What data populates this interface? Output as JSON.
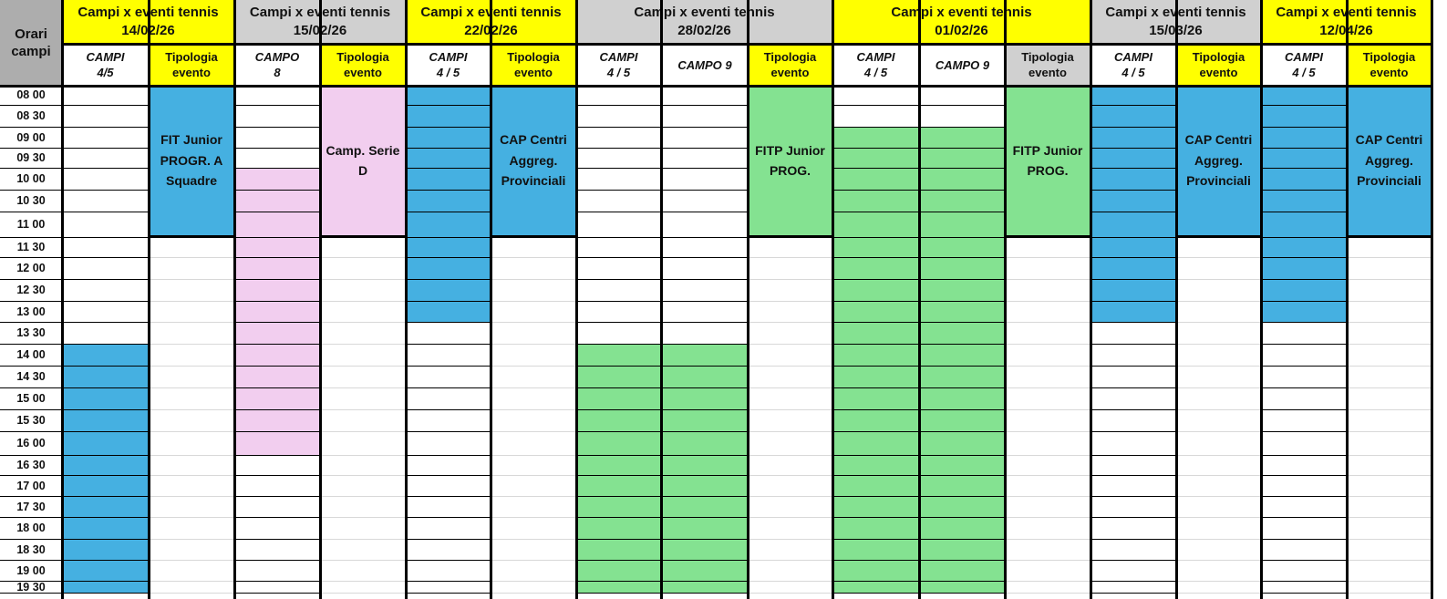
{
  "colors": {
    "yellow": "#FFFF00",
    "gray": "#D0D0D0",
    "orari_gray": "#ADADAD",
    "blue": "#45B0E1",
    "pink": "#F2CEEF",
    "green": "#84E291",
    "white": "#FFFFFF"
  },
  "orari_header": "Orari campi",
  "times": [
    "08 00",
    "08 30",
    "09 00",
    "09 30",
    "10 00",
    "10 30",
    "11 00",
    "11 30",
    "12 00",
    "12 30",
    "13 00",
    "13 30",
    "14 00",
    "14 30",
    "15 00",
    "15 30",
    "16 00",
    "16 30",
    "17 00",
    "17 30",
    "18 00",
    "18 30",
    "19 00",
    "19 30"
  ],
  "groups": [
    {
      "title": "Campi x eventi tennis",
      "date": "14/02/26",
      "header_color": "yellow",
      "courts": [
        {
          "l1": "CAMPI",
          "l2": "4/5",
          "fill": "blue",
          "from": "14 00",
          "to": "19 30"
        }
      ],
      "tipologia": {
        "l1": "Tipologia",
        "l2": "evento",
        "header_color": "yellow",
        "event": "FIT Junior PROGR. A Squadre",
        "fill": "blue"
      }
    },
    {
      "title": "Campi x eventi tennis",
      "date": "15/02/26",
      "header_color": "gray",
      "courts": [
        {
          "l1": "CAMPO",
          "l2": "8",
          "fill": "pink",
          "from": "10 00",
          "to": "16 00"
        }
      ],
      "tipologia": {
        "l1": "Tipologia",
        "l2": "evento",
        "header_color": "yellow",
        "event": "Camp. Serie D",
        "fill": "pink"
      }
    },
    {
      "title": "Campi x eventi tennis",
      "date": "22/02/26",
      "header_color": "yellow",
      "courts": [
        {
          "l1": "CAMPI",
          "l2": "4 / 5",
          "fill": "blue",
          "from": "08 00",
          "to": "13 00"
        }
      ],
      "tipologia": {
        "l1": "Tipologia",
        "l2": "evento",
        "header_color": "yellow",
        "event": "CAP Centri Aggreg. Provinciali",
        "fill": "blue"
      }
    },
    {
      "title": "Campi x eventi tennis",
      "date": "28/02/26",
      "header_color": "gray",
      "courts": [
        {
          "l1": "CAMPI",
          "l2": "4 / 5",
          "fill": "green",
          "from": "14 00",
          "to": "19 30"
        },
        {
          "l1": "CAMPO 9",
          "l2": "",
          "fill": "green",
          "from": "14 00",
          "to": "19 30"
        }
      ],
      "tipologia": {
        "l1": "Tipologia",
        "l2": "evento",
        "header_color": "yellow",
        "event": "FITP Junior PROG.",
        "fill": "green"
      }
    },
    {
      "title": "Campi x eventi tennis",
      "date": "01/02/26",
      "header_color": "yellow",
      "courts": [
        {
          "l1": "CAMPI",
          "l2": "4 / 5",
          "fill": "green",
          "from": "09 00",
          "to": "19 30"
        },
        {
          "l1": "CAMPO 9",
          "l2": "",
          "fill": "green",
          "from": "09 00",
          "to": "19 30"
        }
      ],
      "tipologia": {
        "l1": "Tipologia",
        "l2": "evento",
        "header_color": "gray",
        "event": "FITP Junior PROG.",
        "fill": "green"
      }
    },
    {
      "title": "Campi x eventi tennis",
      "date": "15/03/26",
      "header_color": "gray",
      "courts": [
        {
          "l1": "CAMPI",
          "l2": "4 / 5",
          "fill": "blue",
          "from": "08 00",
          "to": "13 00"
        }
      ],
      "tipologia": {
        "l1": "Tipologia",
        "l2": "evento",
        "header_color": "yellow",
        "event": "CAP Centri Aggreg. Provinciali",
        "fill": "blue"
      }
    },
    {
      "title": "Campi x eventi tennis",
      "date": "12/04/26",
      "header_color": "yellow",
      "courts": [
        {
          "l1": "CAMPI",
          "l2": "4 / 5",
          "fill": "blue",
          "from": "08 00",
          "to": "13 00"
        }
      ],
      "tipologia": {
        "l1": "Tipologia",
        "l2": "evento",
        "header_color": "yellow",
        "event": "CAP Centri Aggreg. Provinciali",
        "fill": "blue"
      }
    }
  ]
}
